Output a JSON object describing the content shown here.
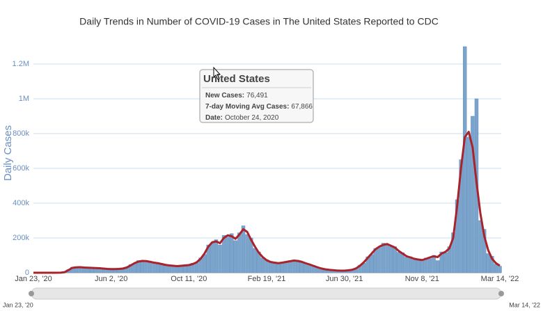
{
  "chart_data": {
    "type": "bar-line",
    "title": "Daily Trends in Number of COVID-19 Cases in The United States Reported to CDC",
    "y_axis_title": "Daily Cases",
    "categories": [
      "Jan 23, '20",
      null,
      null,
      null,
      null,
      null,
      null,
      null,
      null,
      null,
      null,
      null,
      null,
      null,
      null,
      null,
      null,
      null,
      null,
      null,
      "Jun 2, '20",
      null,
      null,
      null,
      null,
      null,
      null,
      null,
      null,
      null,
      null,
      null,
      null,
      null,
      null,
      null,
      null,
      null,
      null,
      null,
      "Oct 11, '20",
      null,
      null,
      null,
      null,
      null,
      null,
      null,
      null,
      null,
      null,
      null,
      null,
      null,
      null,
      null,
      null,
      null,
      null,
      null,
      "Feb 19, '21",
      null,
      null,
      null,
      null,
      null,
      null,
      null,
      null,
      null,
      null,
      null,
      null,
      null,
      null,
      null,
      null,
      null,
      null,
      null,
      "Jun 30, '21",
      null,
      null,
      null,
      null,
      null,
      null,
      null,
      null,
      null,
      null,
      null,
      null,
      null,
      null,
      null,
      null,
      null,
      null,
      null,
      "Nov 8, '21",
      null,
      null,
      null,
      null,
      null,
      null,
      null,
      null,
      null,
      null,
      null,
      null,
      null,
      null,
      null,
      null,
      null,
      null,
      null,
      "Mar 14, '22"
    ],
    "series": [
      {
        "kind": "bar",
        "color": "#7ba4cd",
        "values": [
          0,
          0,
          0,
          0,
          0,
          0,
          0,
          600,
          4000,
          18000,
          32000,
          35000,
          30000,
          33000,
          27000,
          31000,
          25000,
          28000,
          22000,
          24000,
          20000,
          23000,
          20000,
          27000,
          33000,
          47000,
          52000,
          70000,
          66000,
          71000,
          60000,
          62000,
          50000,
          54000,
          42000,
          45000,
          36000,
          41000,
          37000,
          45000,
          41000,
          55000,
          57000,
          86000,
          105000,
          160000,
          170000,
          190000,
          160000,
          215000,
          205000,
          225000,
          185000,
          230000,
          270000,
          220000,
          200000,
          140000,
          120000,
          85000,
          76000,
          58000,
          62000,
          52000,
          61000,
          59000,
          70000,
          66000,
          72000,
          58000,
          57000,
          45000,
          42000,
          30000,
          27000,
          18000,
          19000,
          13000,
          14000,
          10000,
          14000,
          12000,
          19000,
          22000,
          44000,
          55000,
          92000,
          105000,
          140000,
          145000,
          170000,
          160000,
          150000,
          150000,
          118000,
          115000,
          90000,
          92000,
          75000,
          80000,
          70000,
          85000,
          82000,
          100000,
          70000,
          120000,
          115000,
          150000,
          230000,
          420000,
          650000,
          1300000,
          780000,
          900000,
          1000000,
          300000,
          250000,
          110000,
          95000,
          50000,
          38000
        ]
      },
      {
        "kind": "line",
        "color": "#a8232b",
        "values": [
          0,
          0,
          0,
          0,
          0,
          0,
          0,
          500,
          3000,
          15000,
          28000,
          31000,
          32000,
          30000,
          29000,
          28000,
          27000,
          26000,
          24000,
          22000,
          21000,
          21000,
          22000,
          24000,
          30000,
          42000,
          55000,
          64000,
          68000,
          67000,
          63000,
          58000,
          55000,
          50000,
          45000,
          42000,
          40000,
          38000,
          40000,
          42000,
          44000,
          50000,
          60000,
          80000,
          110000,
          150000,
          175000,
          180000,
          170000,
          200000,
          215000,
          210000,
          195000,
          220000,
          250000,
          235000,
          190000,
          150000,
          115000,
          90000,
          72000,
          62000,
          58000,
          55000,
          58000,
          62000,
          66000,
          70000,
          68000,
          63000,
          55000,
          48000,
          40000,
          32000,
          25000,
          20000,
          17000,
          15000,
          13000,
          12000,
          12000,
          14000,
          17000,
          25000,
          40000,
          60000,
          85000,
          110000,
          135000,
          150000,
          160000,
          165000,
          155000,
          145000,
          125000,
          110000,
          95000,
          88000,
          80000,
          76000,
          73000,
          80000,
          88000,
          95000,
          90000,
          110000,
          120000,
          140000,
          200000,
          380000,
          600000,
          780000,
          810000,
          720000,
          520000,
          340000,
          210000,
          130000,
          80000,
          55000,
          40000
        ]
      }
    ],
    "ylim": [
      0,
      1400000
    ],
    "yticks": [
      0,
      {
        "value": 200000,
        "label": "200k"
      },
      {
        "value": 400000,
        "label": "400k"
      },
      {
        "value": 600000,
        "label": "600k"
      },
      {
        "value": 800000,
        "label": "800k"
      },
      {
        "value": 1000000,
        "label": "1M"
      },
      {
        "value": 1200000,
        "label": "1.2M"
      }
    ],
    "grid": true,
    "tooltip": {
      "title": "United States",
      "rows": [
        {
          "label": "New Cases:",
          "text": "76,491"
        },
        {
          "label": "7-day Moving Avg Cases:",
          "text": "67,866"
        },
        {
          "label": "Date:",
          "text": "October 24, 2020"
        }
      ]
    },
    "slider": {
      "start": "Jan 23, '20",
      "end": "Mar 14, '22"
    }
  }
}
